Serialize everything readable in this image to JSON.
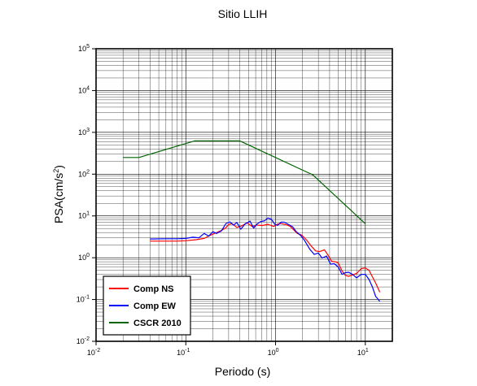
{
  "chart_data": {
    "type": "line",
    "title": "Sitio LLIH",
    "xlabel": "Periodo (s)",
    "ylabel_base": "PSA(cm/s",
    "ylabel_exp": "2",
    "ylabel_close": ")",
    "xscale": "log",
    "yscale": "log",
    "xlim": [
      0.01,
      20
    ],
    "ylim": [
      0.01,
      100000
    ],
    "grid": true,
    "legend_position": "bottom-left",
    "x_ticks": [
      {
        "base": "10",
        "exp": "-2",
        "value": 0.01
      },
      {
        "base": "10",
        "exp": "-1",
        "value": 0.1
      },
      {
        "base": "10",
        "exp": "0",
        "value": 1
      },
      {
        "base": "10",
        "exp": "1",
        "value": 10
      }
    ],
    "y_ticks": [
      {
        "base": "10",
        "exp": "-2",
        "value": 0.01
      },
      {
        "base": "10",
        "exp": "-1",
        "value": 0.1
      },
      {
        "base": "10",
        "exp": "0",
        "value": 1
      },
      {
        "base": "10",
        "exp": "1",
        "value": 10
      },
      {
        "base": "10",
        "exp": "2",
        "value": 100
      },
      {
        "base": "10",
        "exp": "3",
        "value": 1000
      },
      {
        "base": "10",
        "exp": "4",
        "value": 10000
      },
      {
        "base": "10",
        "exp": "5",
        "value": 100000
      }
    ],
    "series": [
      {
        "name": "Comp NS",
        "color": "#ff0000",
        "points": [
          [
            0.04,
            2.5
          ],
          [
            0.06,
            2.5
          ],
          [
            0.08,
            2.5
          ],
          [
            0.1,
            2.55
          ],
          [
            0.13,
            2.7
          ],
          [
            0.16,
            2.9
          ],
          [
            0.19,
            3.5
          ],
          [
            0.22,
            4.0
          ],
          [
            0.25,
            4.5
          ],
          [
            0.28,
            5.2
          ],
          [
            0.3,
            6.3
          ],
          [
            0.33,
            6.5
          ],
          [
            0.37,
            5.3
          ],
          [
            0.42,
            5.8
          ],
          [
            0.48,
            6.8
          ],
          [
            0.55,
            5.6
          ],
          [
            0.62,
            6.0
          ],
          [
            0.72,
            5.9
          ],
          [
            0.82,
            6.3
          ],
          [
            0.95,
            5.6
          ],
          [
            1.05,
            6.4
          ],
          [
            1.15,
            6.6
          ],
          [
            1.3,
            6.2
          ],
          [
            1.45,
            5.7
          ],
          [
            1.6,
            4.6
          ],
          [
            1.75,
            3.8
          ],
          [
            1.95,
            3.5
          ],
          [
            2.2,
            2.7
          ],
          [
            2.5,
            1.9
          ],
          [
            2.8,
            1.45
          ],
          [
            3.1,
            1.4
          ],
          [
            3.5,
            1.55
          ],
          [
            3.8,
            1.2
          ],
          [
            4.2,
            0.82
          ],
          [
            4.6,
            0.8
          ],
          [
            5.0,
            0.75
          ],
          [
            5.5,
            0.48
          ],
          [
            6.0,
            0.38
          ],
          [
            6.5,
            0.36
          ],
          [
            7.0,
            0.38
          ],
          [
            8.0,
            0.42
          ],
          [
            9.0,
            0.55
          ],
          [
            10.0,
            0.57
          ],
          [
            11.0,
            0.5
          ],
          [
            12.0,
            0.35
          ],
          [
            13.0,
            0.25
          ],
          [
            14.5,
            0.15
          ]
        ]
      },
      {
        "name": "Comp EW",
        "color": "#0000ff",
        "points": [
          [
            0.04,
            2.8
          ],
          [
            0.06,
            2.85
          ],
          [
            0.08,
            2.85
          ],
          [
            0.1,
            2.9
          ],
          [
            0.12,
            3.1
          ],
          [
            0.14,
            3.0
          ],
          [
            0.16,
            3.8
          ],
          [
            0.18,
            3.3
          ],
          [
            0.2,
            4.2
          ],
          [
            0.22,
            3.8
          ],
          [
            0.25,
            4.4
          ],
          [
            0.28,
            6.6
          ],
          [
            0.31,
            7.2
          ],
          [
            0.34,
            6.0
          ],
          [
            0.37,
            7.0
          ],
          [
            0.41,
            4.8
          ],
          [
            0.46,
            6.5
          ],
          [
            0.52,
            7.5
          ],
          [
            0.57,
            5.1
          ],
          [
            0.62,
            6.4
          ],
          [
            0.68,
            7.3
          ],
          [
            0.75,
            7.6
          ],
          [
            0.82,
            8.9
          ],
          [
            0.9,
            8.3
          ],
          [
            0.98,
            6.3
          ],
          [
            1.05,
            5.9
          ],
          [
            1.15,
            7.1
          ],
          [
            1.25,
            7.1
          ],
          [
            1.4,
            6.2
          ],
          [
            1.55,
            5.5
          ],
          [
            1.7,
            4.2
          ],
          [
            1.9,
            3.4
          ],
          [
            2.1,
            2.6
          ],
          [
            2.4,
            1.6
          ],
          [
            2.7,
            1.2
          ],
          [
            3.0,
            1.3
          ],
          [
            3.3,
            0.98
          ],
          [
            3.7,
            1.1
          ],
          [
            4.1,
            0.7
          ],
          [
            4.5,
            0.72
          ],
          [
            5.0,
            0.6
          ],
          [
            5.5,
            0.4
          ],
          [
            6.0,
            0.44
          ],
          [
            6.5,
            0.45
          ],
          [
            7.2,
            0.4
          ],
          [
            8.0,
            0.33
          ],
          [
            9.0,
            0.4
          ],
          [
            10.0,
            0.4
          ],
          [
            11.0,
            0.3
          ],
          [
            12.0,
            0.2
          ],
          [
            13.0,
            0.12
          ],
          [
            14.5,
            0.09
          ]
        ]
      },
      {
        "name": "CSCR 2010",
        "color": "#006400",
        "points": [
          [
            0.02,
            250
          ],
          [
            0.03,
            250
          ],
          [
            0.125,
            625
          ],
          [
            0.4,
            625
          ],
          [
            2.6,
            96
          ],
          [
            10.0,
            6.5
          ]
        ]
      }
    ]
  }
}
